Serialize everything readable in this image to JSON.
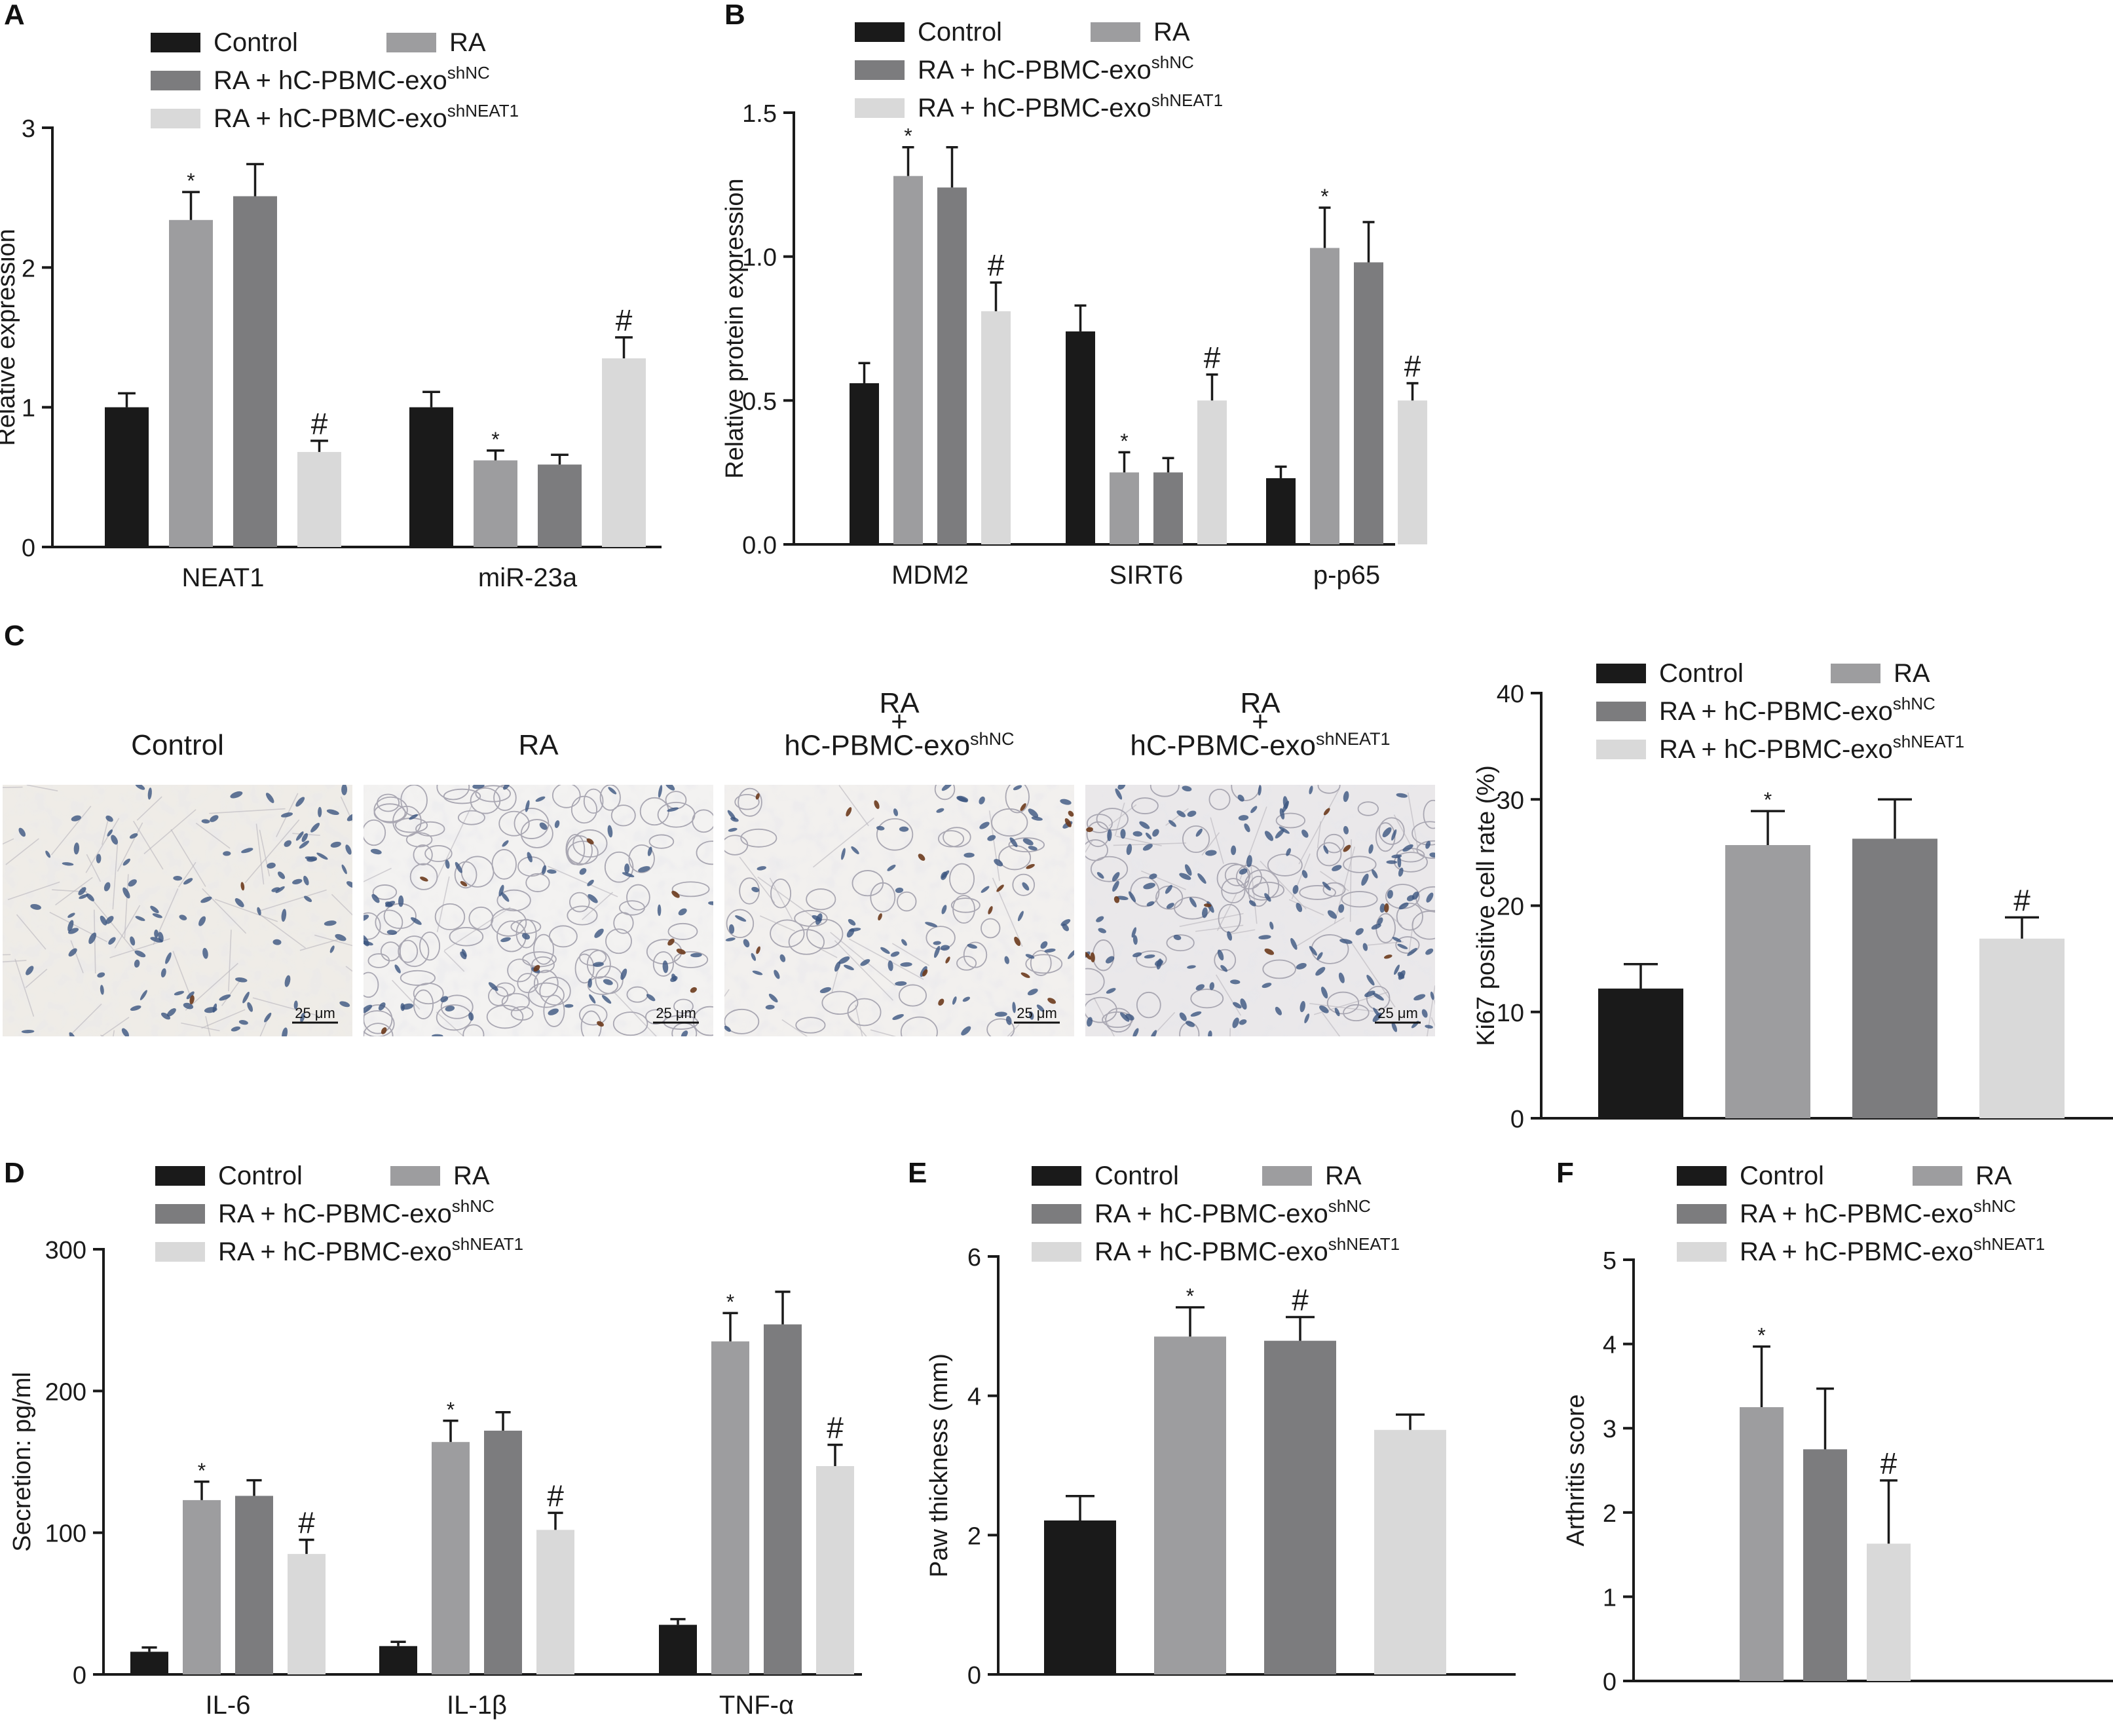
{
  "colors": {
    "control": "#1a1a1a",
    "ra": "#9d9d9f",
    "shnc": "#7c7c7e",
    "shneat1": "#d9d9d9",
    "axis": "#1a1a1a"
  },
  "legend_groups": [
    {
      "label": "Control",
      "sup": "",
      "color": "#1a1a1a"
    },
    {
      "label": "RA",
      "sup": "",
      "color": "#9d9d9f"
    },
    {
      "label": "RA + hC-PBMC-exo",
      "sup": "shNC",
      "color": "#7c7c7e"
    },
    {
      "label": "RA + hC-PBMC-exo",
      "sup": "shNEAT1",
      "color": "#d9d9d9"
    }
  ],
  "panel_labels": [
    "A",
    "B",
    "C",
    "D",
    "E",
    "F"
  ],
  "micrographs": [
    {
      "title_lines": [
        "Control"
      ],
      "sup": "",
      "scale_bar": "25 μm"
    },
    {
      "title_lines": [
        "RA"
      ],
      "sup": "",
      "scale_bar": "25 μm"
    },
    {
      "title_lines": [
        "RA",
        "+",
        "hC-PBMC-exo"
      ],
      "sup": "shNC",
      "scale_bar": "25 μm"
    },
    {
      "title_lines": [
        "RA",
        "+",
        "hC-PBMC-exo"
      ],
      "sup": "shNEAT1",
      "scale_bar": "25 μm"
    }
  ],
  "chart_data": [
    {
      "panel": "A",
      "type": "bar",
      "ylabel": "Relative expression",
      "ylim": [
        0,
        3
      ],
      "yticks": [
        0,
        1,
        2,
        3
      ],
      "categories": [
        "NEAT1",
        "miR-23a"
      ],
      "series": [
        {
          "name": "Control",
          "values": [
            1.0,
            1.0
          ],
          "errors": [
            0.1,
            0.11
          ],
          "marks": [
            "",
            ""
          ]
        },
        {
          "name": "RA",
          "values": [
            2.34,
            0.62
          ],
          "errors": [
            0.2,
            0.07
          ],
          "marks": [
            "*",
            "*"
          ]
        },
        {
          "name": "RA + hC-PBMC-exo shNC",
          "values": [
            2.51,
            0.59
          ],
          "errors": [
            0.23,
            0.07
          ],
          "marks": [
            "",
            ""
          ]
        },
        {
          "name": "RA + hC-PBMC-exo shNEAT1",
          "values": [
            0.68,
            1.35
          ],
          "errors": [
            0.08,
            0.15
          ],
          "marks": [
            "#",
            "#"
          ]
        }
      ]
    },
    {
      "panel": "B",
      "type": "bar",
      "ylabel": "Relative protein expression",
      "ylim": [
        0,
        1.5
      ],
      "yticks": [
        0.0,
        0.5,
        1.0,
        1.5
      ],
      "categories": [
        "MDM2",
        "SIRT6",
        "p-p65"
      ],
      "series": [
        {
          "name": "Control",
          "values": [
            0.56,
            0.74,
            0.23
          ],
          "errors": [
            0.07,
            0.09,
            0.04
          ],
          "marks": [
            "",
            "",
            ""
          ]
        },
        {
          "name": "RA",
          "values": [
            1.28,
            0.25,
            1.03
          ],
          "errors": [
            0.1,
            0.07,
            0.14
          ],
          "marks": [
            "*",
            "*",
            "*"
          ]
        },
        {
          "name": "RA + hC-PBMC-exo shNC",
          "values": [
            1.24,
            0.25,
            0.98
          ],
          "errors": [
            0.14,
            0.05,
            0.14
          ],
          "marks": [
            "",
            "",
            ""
          ]
        },
        {
          "name": "RA + hC-PBMC-exo shNEAT1",
          "values": [
            0.81,
            0.5,
            0.5
          ],
          "errors": [
            0.1,
            0.09,
            0.06
          ],
          "marks": [
            "#",
            "#",
            "#"
          ]
        }
      ]
    },
    {
      "panel": "C",
      "type": "bar",
      "ylabel": "Ki67 positive cell rate (%)",
      "ylim": [
        0,
        40
      ],
      "yticks": [
        0,
        10,
        20,
        30,
        40
      ],
      "categories": [
        ""
      ],
      "series": [
        {
          "name": "Control",
          "values": [
            12.2
          ],
          "errors": [
            2.3
          ],
          "marks": [
            ""
          ]
        },
        {
          "name": "RA",
          "values": [
            25.7
          ],
          "errors": [
            3.2
          ],
          "marks": [
            "*"
          ]
        },
        {
          "name": "RA + hC-PBMC-exo shNC",
          "values": [
            26.3
          ],
          "errors": [
            3.7
          ],
          "marks": [
            ""
          ]
        },
        {
          "name": "RA + hC-PBMC-exo shNEAT1",
          "values": [
            16.9
          ],
          "errors": [
            2.0
          ],
          "marks": [
            "#"
          ]
        }
      ]
    },
    {
      "panel": "D",
      "type": "bar",
      "ylabel": "Secretion: pg/ml",
      "ylim": [
        0,
        300
      ],
      "yticks": [
        0,
        100,
        200,
        300
      ],
      "categories": [
        "IL-6",
        "IL-1β",
        "TNF-α"
      ],
      "series": [
        {
          "name": "Control",
          "values": [
            16,
            20,
            35
          ],
          "errors": [
            3,
            3,
            4
          ],
          "marks": [
            "",
            "",
            ""
          ]
        },
        {
          "name": "RA",
          "values": [
            123,
            164,
            235
          ],
          "errors": [
            13,
            15,
            20
          ],
          "marks": [
            "*",
            "*",
            "*"
          ]
        },
        {
          "name": "RA + hC-PBMC-exo shNC",
          "values": [
            126,
            172,
            247
          ],
          "errors": [
            11,
            13,
            23
          ],
          "marks": [
            "",
            "",
            ""
          ]
        },
        {
          "name": "RA + hC-PBMC-exo shNEAT1",
          "values": [
            85,
            102,
            147
          ],
          "errors": [
            10,
            12,
            15
          ],
          "marks": [
            "#",
            "#",
            "#"
          ]
        }
      ]
    },
    {
      "panel": "E",
      "type": "bar",
      "ylabel": "Paw thickness (mm)",
      "ylim": [
        0,
        6
      ],
      "yticks": [
        0,
        2,
        4,
        6
      ],
      "categories": [
        ""
      ],
      "series": [
        {
          "name": "Control",
          "values": [
            2.21
          ],
          "errors": [
            0.35
          ],
          "marks": [
            ""
          ]
        },
        {
          "name": "RA",
          "values": [
            4.85
          ],
          "errors": [
            0.42
          ],
          "marks": [
            "*"
          ]
        },
        {
          "name": "RA + hC-PBMC-exo shNC",
          "values": [
            4.79
          ],
          "errors": [
            0.34
          ],
          "marks": [
            "#"
          ]
        },
        {
          "name": "RA + hC-PBMC-exo shNEAT1",
          "values": [
            3.51
          ],
          "errors": [
            0.22
          ],
          "marks": [
            ""
          ]
        }
      ]
    },
    {
      "panel": "F",
      "type": "bar",
      "ylabel": "Arthritis score",
      "ylim": [
        0,
        5
      ],
      "yticks": [
        0,
        1,
        2,
        3,
        4,
        5
      ],
      "categories": [
        ""
      ],
      "series": [
        {
          "name": "Control",
          "values": [
            0
          ],
          "errors": [
            0
          ],
          "marks": [
            ""
          ]
        },
        {
          "name": "RA",
          "values": [
            3.25
          ],
          "errors": [
            0.72
          ],
          "marks": [
            "*"
          ]
        },
        {
          "name": "RA + hC-PBMC-exo shNC",
          "values": [
            2.75
          ],
          "errors": [
            0.72
          ],
          "marks": [
            ""
          ]
        },
        {
          "name": "RA + hC-PBMC-exo shNEAT1",
          "values": [
            1.63
          ],
          "errors": [
            0.75
          ],
          "marks": [
            "#"
          ]
        }
      ]
    }
  ]
}
